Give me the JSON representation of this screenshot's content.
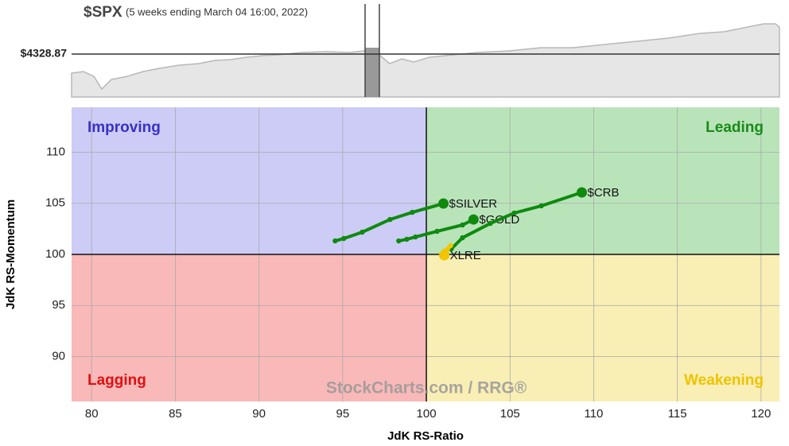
{
  "header": {
    "symbol": "$SPX",
    "period": "(5 weeks ending March 04 16:00, 2022)",
    "price_label": "$4328.87",
    "watermark": "StockCharts.com / RRG®"
  },
  "chart_data": {
    "type": "rrg",
    "x_label": "JdK RS-Ratio",
    "y_label": "JdK RS-Momentum",
    "xlim": [
      78.8,
      121.1
    ],
    "ylim": [
      85.6,
      114.4
    ],
    "xticks": [
      80,
      85,
      90,
      95,
      100,
      105,
      110,
      115,
      120
    ],
    "yticks": [
      90,
      95,
      100,
      105,
      110
    ],
    "center": [
      100,
      100
    ],
    "grid": true,
    "quadrants": [
      {
        "name": "Improving",
        "color": "#ccccf6",
        "label_color": "#3a2fc9"
      },
      {
        "name": "Leading",
        "color": "#b9e4b9",
        "label_color": "#1a8a1a"
      },
      {
        "name": "Lagging",
        "color": "#f9b9b9",
        "label_color": "#e01010"
      },
      {
        "name": "Weakening",
        "color": "#f9eeb4",
        "label_color": "#eec300"
      }
    ],
    "series": [
      {
        "name": "$SILVER",
        "color": "#0f8a0f",
        "x": [
          94.55,
          95.07,
          96.17,
          97.83,
          99.16,
          101.02
        ],
        "values": [
          101.32,
          101.56,
          102.18,
          103.42,
          104.12,
          104.98
        ]
      },
      {
        "name": "$GOLD",
        "color": "#0f8a0f",
        "x": [
          98.35,
          98.83,
          99.35,
          100.64,
          102.16,
          102.82
        ],
        "values": [
          101.32,
          101.48,
          101.71,
          102.26,
          102.88,
          103.42
        ]
      },
      {
        "name": "$CRB",
        "color": "#0f8a0f",
        "x": [
          101.49,
          102.16,
          103.82,
          105.25,
          106.87,
          109.29
        ],
        "values": [
          100.54,
          101.63,
          103.03,
          104.05,
          104.75,
          106.07
        ]
      },
      {
        "name": "XLRE",
        "color": "#f2c500",
        "x": [
          101.07,
          101.45,
          101.07
        ],
        "values": [
          100.31,
          100.86,
          99.92
        ]
      }
    ]
  }
}
